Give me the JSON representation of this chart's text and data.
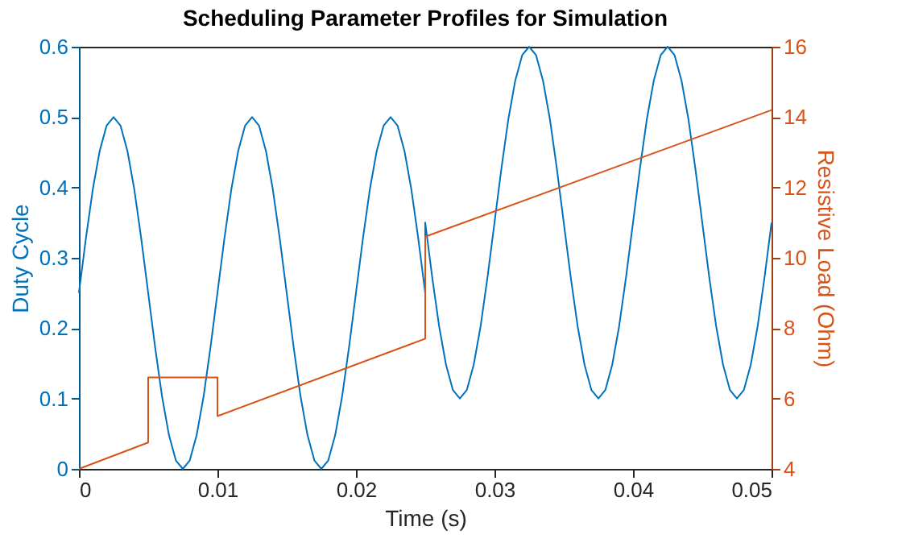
{
  "chart_data": {
    "type": "line",
    "title": "Scheduling Parameter Profiles for Simulation",
    "xlabel": "Time (s)",
    "ylabel": "Duty Cycle",
    "y2label": "Resistive Load (Ohm)",
    "xlim": [
      0,
      0.05
    ],
    "xticks": [
      0,
      0.01,
      0.02,
      0.03,
      0.04,
      0.05
    ],
    "ylim": [
      0,
      0.6
    ],
    "yticks": [
      0,
      0.1,
      0.2,
      0.3,
      0.4,
      0.5,
      0.6
    ],
    "y2lim": [
      4,
      16
    ],
    "y2ticks": [
      4,
      6,
      8,
      10,
      12,
      14,
      16
    ],
    "grid": false,
    "line_style": "solid",
    "marker": "none",
    "series": [
      {
        "color": "#0072bd",
        "x": [
          0,
          0.0005,
          0.001,
          0.0015,
          0.002,
          0.0025,
          0.003,
          0.0035,
          0.004,
          0.0045,
          0.005,
          0.0055,
          0.006,
          0.0065,
          0.007,
          0.0075,
          0.008,
          0.0085,
          0.009,
          0.0095,
          0.01,
          0.0105,
          0.011,
          0.0115,
          0.012,
          0.0125,
          0.013,
          0.0135,
          0.014,
          0.0145,
          0.015,
          0.0155,
          0.016,
          0.0165,
          0.017,
          0.0175,
          0.018,
          0.0185,
          0.019,
          0.0195,
          0.02,
          0.0205,
          0.021,
          0.0215,
          0.022,
          0.0225,
          0.023,
          0.0235,
          0.024,
          0.0245,
          0.025,
          0.025,
          0.0255,
          0.026,
          0.0265,
          0.027,
          0.0275,
          0.028,
          0.0285,
          0.029,
          0.0295,
          0.03,
          0.0305,
          0.031,
          0.0315,
          0.032,
          0.0325,
          0.033,
          0.0335,
          0.034,
          0.0345,
          0.035,
          0.0355,
          0.036,
          0.0365,
          0.037,
          0.0375,
          0.038,
          0.0385,
          0.039,
          0.0395,
          0.04,
          0.0405,
          0.041,
          0.0415,
          0.042,
          0.0425,
          0.043,
          0.0435,
          0.044,
          0.0445,
          0.045,
          0.0455,
          0.046,
          0.0465,
          0.047,
          0.0475,
          0.048,
          0.0485,
          0.049,
          0.0495,
          0.05
        ],
        "values": [
          0.25,
          0.327,
          0.397,
          0.452,
          0.488,
          0.5,
          0.488,
          0.452,
          0.397,
          0.327,
          0.25,
          0.173,
          0.103,
          0.048,
          0.012,
          0,
          0.012,
          0.048,
          0.103,
          0.173,
          0.25,
          0.327,
          0.397,
          0.452,
          0.488,
          0.5,
          0.488,
          0.452,
          0.397,
          0.327,
          0.25,
          0.173,
          0.103,
          0.048,
          0.012,
          0,
          0.012,
          0.048,
          0.103,
          0.173,
          0.25,
          0.327,
          0.397,
          0.452,
          0.488,
          0.5,
          0.488,
          0.452,
          0.397,
          0.327,
          0.25,
          0.35,
          0.273,
          0.203,
          0.148,
          0.112,
          0.1,
          0.112,
          0.148,
          0.203,
          0.273,
          0.35,
          0.427,
          0.497,
          0.552,
          0.588,
          0.6,
          0.588,
          0.552,
          0.497,
          0.427,
          0.35,
          0.273,
          0.203,
          0.148,
          0.112,
          0.1,
          0.112,
          0.148,
          0.203,
          0.273,
          0.35,
          0.427,
          0.497,
          0.552,
          0.588,
          0.6,
          0.588,
          0.552,
          0.497,
          0.427,
          0.35,
          0.273,
          0.203,
          0.148,
          0.112,
          0.1,
          0.112,
          0.148,
          0.203,
          0.273,
          0.35
        ]
      },
      {
        "color": "#d95319",
        "axis": "y2",
        "x": [
          0,
          0.005,
          0.005,
          0.01,
          0.01,
          0.025,
          0.025,
          0.05
        ],
        "values": [
          4,
          4.75,
          6.6,
          6.6,
          5.5,
          7.7,
          10.6,
          14.2
        ]
      }
    ]
  }
}
